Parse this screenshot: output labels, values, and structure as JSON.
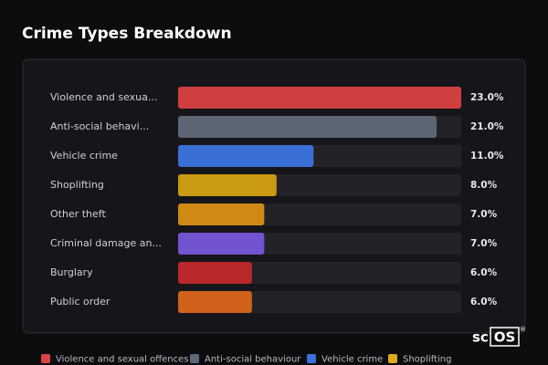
{
  "chart_data": {
    "type": "bar",
    "orientation": "horizontal",
    "title": "Crime Types Breakdown",
    "categories": [
      "Violence and sexua...",
      "Anti-social behavi...",
      "Vehicle crime",
      "Shoplifting",
      "Other theft",
      "Criminal damage an...",
      "Burglary",
      "Public order"
    ],
    "values": [
      23,
      21,
      11,
      8,
      7,
      7,
      6,
      6
    ],
    "value_labels": [
      "23.0%",
      "21.0%",
      "11.0%",
      "8.0%",
      "7.0%",
      "7.0%",
      "6.0%",
      "6.0%"
    ],
    "colors": [
      "#cf3f3f",
      "#5c6675",
      "#3a6fd6",
      "#c99a12",
      "#cf8a16",
      "#7352cf",
      "#b9282a",
      "#d0621c"
    ],
    "xlim": [
      0,
      23
    ],
    "legend": [
      {
        "name": "Violence and sexual offences",
        "color": "#d94444"
      },
      {
        "name": "Anti-social behaviour",
        "color": "#5e6877"
      },
      {
        "name": "Vehicle crime",
        "color": "#3a72db"
      },
      {
        "name": "Shoplifting",
        "color": "#e0aa1a"
      }
    ]
  },
  "logo": {
    "prefix": "sc",
    "boxed": "OS",
    "mark": "®"
  }
}
